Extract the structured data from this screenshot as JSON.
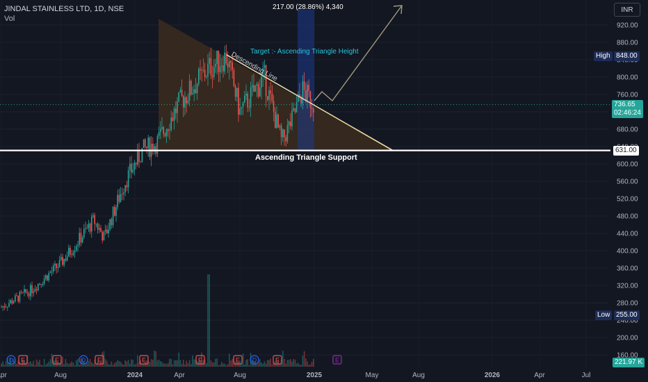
{
  "header": {
    "title": "JINDAL STAINLESS LTD, 1D, NSE",
    "volume_label": "Vol"
  },
  "currency_button": "INR",
  "measure_label": "217.00 (28.86%) 4,340",
  "annotations": {
    "descending_line": "Descending Line",
    "target": "Target :- Ascending Triangle Height",
    "support": "Ascending Triangle Support"
  },
  "price_labels": {
    "high_tag": "High",
    "high_value": "848.00",
    "low_tag": "Low",
    "low_value": "255.00",
    "support_value": "631.00",
    "last_price": "736.65",
    "countdown": "02:46:24",
    "volume_value": "221.97 K"
  },
  "colors": {
    "background": "#131722",
    "up": "#26a69a",
    "down": "#ef5350",
    "triangle_fill": "#3b2c1f",
    "triangle_edge": "#e8d8a0",
    "measure_fill": "#1e3a8a",
    "support_line": "#ffffff",
    "target_text": "#26c6da"
  },
  "event_markers": [
    "D",
    "E",
    "E",
    "D",
    "E",
    "E",
    "E",
    "E",
    "D",
    "E",
    "E"
  ],
  "chart_data": {
    "type": "candlestick",
    "y_axis": {
      "min": 160,
      "max": 920,
      "step": 40,
      "tick_labels": [
        "920.00",
        "880.00",
        "840.00",
        "800.00",
        "760.00",
        "720.00",
        "680.00",
        "640.00",
        "600.00",
        "560.00",
        "520.00",
        "480.00",
        "440.00",
        "400.00",
        "360.00",
        "320.00",
        "280.00",
        "240.00",
        "200.00",
        "160.00"
      ]
    },
    "x_axis": {
      "tick_labels": [
        "Apr",
        "Aug",
        "2024",
        "Apr",
        "Aug",
        "2025",
        "May",
        "Aug",
        "2026",
        "Apr",
        "Jul"
      ]
    },
    "key_levels": {
      "high": 848.0,
      "low": 255.0,
      "support": 631.0,
      "last_price": 736.65
    },
    "price_path": [
      [
        "Apr 2023",
        270
      ],
      [
        "Jun 2023",
        310
      ],
      [
        "Aug 2023",
        370
      ],
      [
        "Oct 2023",
        470
      ],
      [
        "Nov 2023",
        430
      ],
      [
        "Jan 2024",
        560
      ],
      [
        "Feb 2024",
        631
      ],
      [
        "Mar 2024",
        650
      ],
      [
        "Apr 2024",
        740
      ],
      [
        "Jun 2024",
        820
      ],
      [
        "Jul 2024",
        848
      ],
      [
        "Aug 2024",
        720
      ],
      [
        "Sep 2024",
        800
      ],
      [
        "Oct 2024",
        650
      ],
      [
        "Nov 2024",
        700
      ],
      [
        "Dec 2024",
        770
      ],
      [
        "Jan 2025",
        736.65
      ]
    ],
    "projection": {
      "target_gain": 217.0,
      "target_gain_pct": 28.86,
      "bars": 4340
    }
  }
}
